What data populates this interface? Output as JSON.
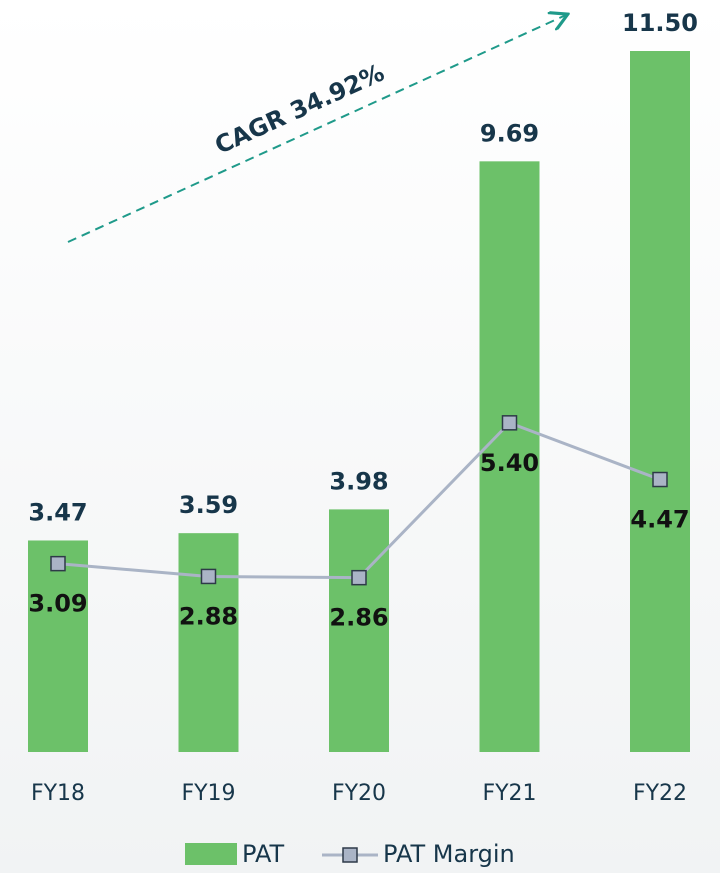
{
  "chart_data": {
    "type": "bar",
    "categories": [
      "FY18",
      "FY19",
      "FY20",
      "FY21",
      "FY22"
    ],
    "series": [
      {
        "name": "PAT",
        "type": "bar",
        "color": "#6cc169",
        "values": [
          3.47,
          3.59,
          3.98,
          9.69,
          11.5
        ],
        "value_labels": [
          "3.47",
          "3.59",
          "3.98",
          "9.69",
          "11.50"
        ]
      },
      {
        "name": "PAT Margin",
        "type": "line",
        "color": "#aab4c6",
        "values": [
          3.09,
          2.88,
          2.86,
          5.4,
          4.47
        ],
        "value_labels": [
          "3.09",
          "2.88",
          "2.86",
          "5.40",
          "4.47"
        ]
      }
    ],
    "ylim": [
      0,
      11.5
    ],
    "annotations": [
      "CAGR 34.92%"
    ],
    "legend": "bottom"
  }
}
